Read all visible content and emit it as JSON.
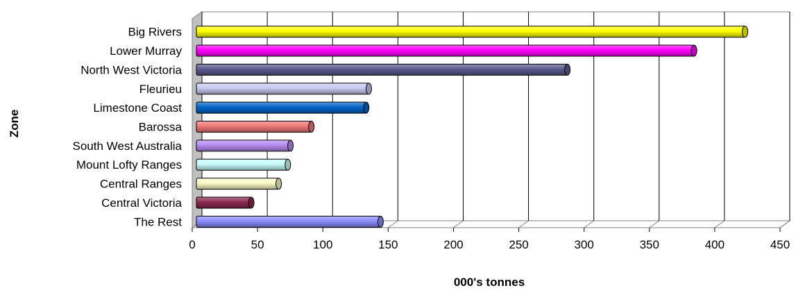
{
  "chart_data": {
    "type": "bar",
    "orientation": "horizontal",
    "title": "",
    "xlabel": "000's tonnes",
    "ylabel": "Zone",
    "xlim": [
      0,
      450
    ],
    "x_ticks": [
      "0",
      "50",
      "100",
      "150",
      "200",
      "250",
      "300",
      "350",
      "400",
      "450"
    ],
    "grid": "vertical",
    "legend": "none",
    "categories": [
      "Big Rivers",
      "Lower Murray",
      "North West Victoria",
      "Fleurieu",
      "Limestone Coast",
      "Barossa",
      "South West Australia",
      "Mount Lofty Ranges",
      "Central Ranges",
      "Central Victoria",
      "The Rest"
    ],
    "values": [
      420,
      381,
      284,
      132,
      130,
      88,
      72,
      70,
      63,
      42,
      141
    ],
    "colors": [
      "#ffff00",
      "#ff00ff",
      "#5a5a8c",
      "#c8c8f0",
      "#0064c8",
      "#f07878",
      "#b48cf0",
      "#c8fafa",
      "#fafac8",
      "#8c2850",
      "#8c8cff"
    ]
  }
}
